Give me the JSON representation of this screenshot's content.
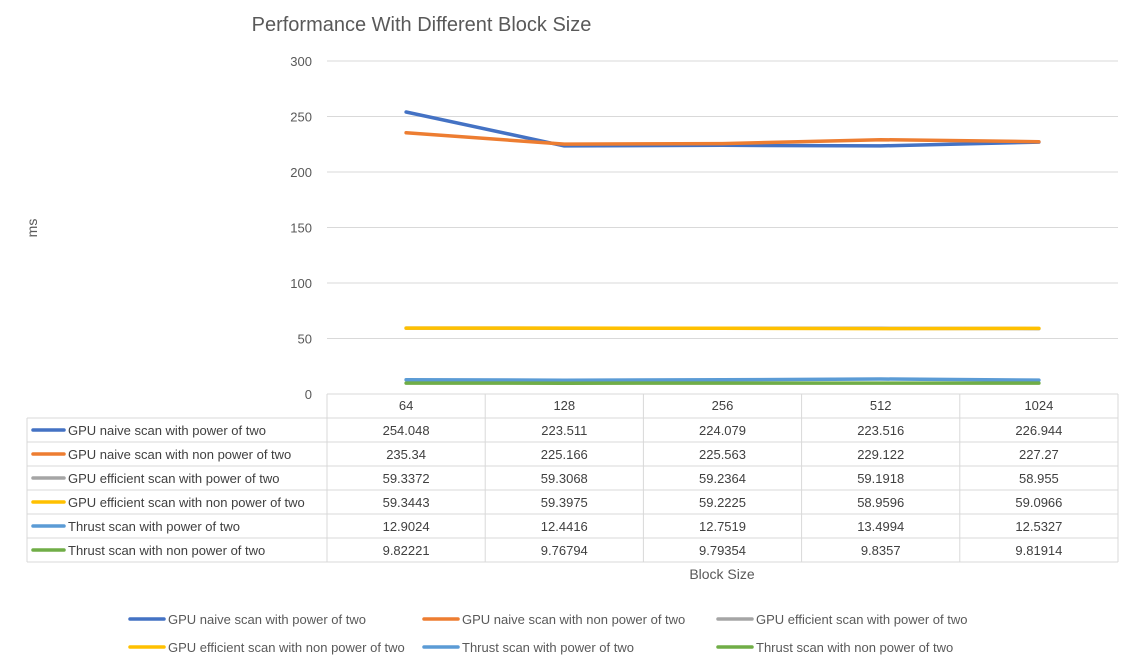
{
  "chart_data": {
    "type": "line",
    "title": "Performance With Different Block Size",
    "xlabel": "Block Size",
    "ylabel": "ms",
    "ylim": [
      0,
      300
    ],
    "yticks": [
      0,
      50,
      100,
      150,
      200,
      250,
      300
    ],
    "grid": true,
    "legend": "bottom",
    "data_table": true,
    "categories": [
      "64",
      "128",
      "256",
      "512",
      "1024"
    ],
    "series": [
      {
        "name": "GPU naive scan with power of two",
        "color": "#4472C4",
        "values": [
          254.048,
          223.511,
          224.079,
          223.516,
          226.944
        ],
        "labels": [
          "254.048",
          "223.511",
          "224.079",
          "223.516",
          "226.944"
        ]
      },
      {
        "name": "GPU naive scan with non power of two",
        "color": "#ED7D31",
        "values": [
          235.34,
          225.166,
          225.563,
          229.122,
          227.27
        ],
        "labels": [
          "235.34",
          "225.166",
          "225.563",
          "229.122",
          "227.27"
        ]
      },
      {
        "name": "GPU efficient scan with power of two",
        "color": "#A5A5A5",
        "values": [
          59.3372,
          59.3068,
          59.2364,
          59.1918,
          58.955
        ],
        "labels": [
          "59.3372",
          "59.3068",
          "59.2364",
          "59.1918",
          "58.955"
        ]
      },
      {
        "name": "GPU efficient scan with non power of two",
        "color": "#FFC000",
        "values": [
          59.3443,
          59.3975,
          59.2225,
          58.9596,
          59.0966
        ],
        "labels": [
          "59.3443",
          "59.3975",
          "59.2225",
          "58.9596",
          "59.0966"
        ]
      },
      {
        "name": "Thrust scan with power of two",
        "color": "#5B9BD5",
        "values": [
          12.9024,
          12.4416,
          12.7519,
          13.4994,
          12.5327
        ],
        "labels": [
          "12.9024",
          "12.4416",
          "12.7519",
          "13.4994",
          "12.5327"
        ]
      },
      {
        "name": "Thrust scan with non power of two",
        "color": "#70AD47",
        "values": [
          9.82221,
          9.76794,
          9.79354,
          9.8357,
          9.81914
        ],
        "labels": [
          "9.82221",
          "9.76794",
          "9.79354",
          "9.8357",
          "9.81914"
        ]
      }
    ]
  }
}
